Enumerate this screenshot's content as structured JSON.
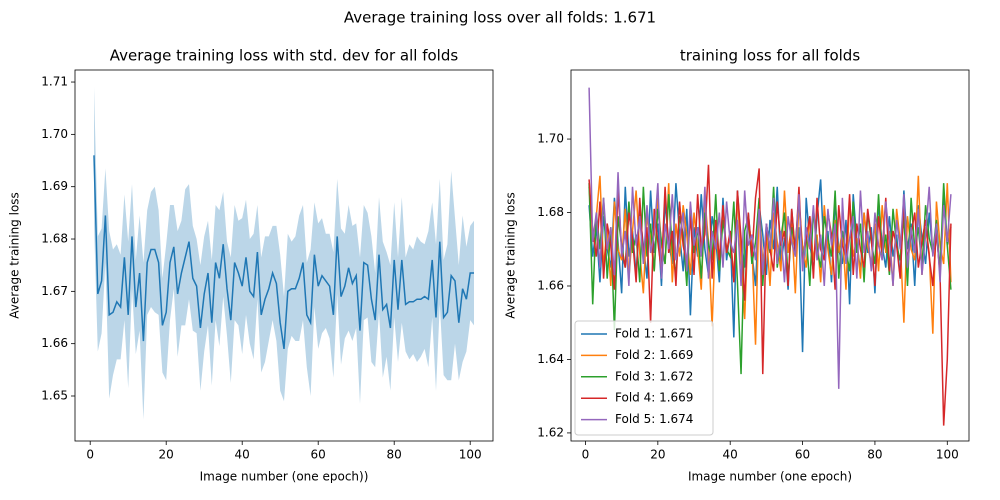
{
  "title": "Average training loss over all folds: 1.671",
  "chart_data": [
    {
      "type": "band-line",
      "title": "Average training loss with std. dev for all folds",
      "xlabel": "Image number (one epoch))",
      "ylabel": "Average training loss",
      "color": "#1f77b4",
      "band_color": "#1f77b4",
      "xlim": [
        -4,
        106
      ],
      "xticks": [
        0,
        20,
        40,
        60,
        80,
        100
      ],
      "ylim": [
        1.6414,
        1.7123
      ],
      "yticks": [
        1.65,
        1.66,
        1.67,
        1.68,
        1.69,
        {
          "value": 1.7,
          "label": "1.70"
        },
        1.71
      ],
      "x": [
        1,
        2,
        3,
        4,
        5,
        6,
        7,
        8,
        9,
        10,
        11,
        12,
        13,
        14,
        15,
        16,
        17,
        18,
        19,
        20,
        21,
        22,
        23,
        24,
        25,
        26,
        27,
        28,
        29,
        30,
        31,
        32,
        33,
        34,
        35,
        36,
        37,
        38,
        39,
        40,
        41,
        42,
        43,
        44,
        45,
        46,
        47,
        48,
        49,
        50,
        51,
        52,
        53,
        54,
        55,
        56,
        57,
        58,
        59,
        60,
        61,
        62,
        63,
        64,
        65,
        66,
        67,
        68,
        69,
        70,
        71,
        72,
        73,
        74,
        75,
        76,
        77,
        78,
        79,
        80,
        81,
        82,
        83,
        84,
        85,
        86,
        87,
        88,
        89,
        90,
        91,
        92,
        93,
        94,
        95,
        96,
        97,
        98,
        99,
        100,
        101
      ],
      "values": [
        1.696,
        1.6695,
        1.672,
        1.6845,
        1.6655,
        1.666,
        1.668,
        1.667,
        1.6765,
        1.6655,
        1.6805,
        1.667,
        1.6735,
        1.6605,
        1.6755,
        1.678,
        1.678,
        1.6755,
        1.6635,
        1.666,
        1.6755,
        1.6785,
        1.6695,
        1.6735,
        1.6765,
        1.6795,
        1.6725,
        1.671,
        1.663,
        1.6695,
        1.6735,
        1.664,
        1.6755,
        1.6725,
        1.679,
        1.6705,
        1.6645,
        1.6755,
        1.6735,
        1.671,
        1.6765,
        1.67,
        1.669,
        1.6775,
        1.6655,
        1.6685,
        1.6705,
        1.6735,
        1.6715,
        1.664,
        1.659,
        1.67,
        1.6705,
        1.6705,
        1.6725,
        1.6755,
        1.6655,
        1.664,
        1.677,
        1.671,
        1.673,
        1.672,
        1.671,
        1.6655,
        1.6805,
        1.669,
        1.671,
        1.6745,
        1.6715,
        1.673,
        1.6625,
        1.6755,
        1.675,
        1.6685,
        1.6645,
        1.677,
        1.6665,
        1.6675,
        1.663,
        1.676,
        1.6665,
        1.676,
        1.6675,
        1.668,
        1.668,
        1.6685,
        1.6685,
        1.669,
        1.6685,
        1.676,
        1.665,
        1.6795,
        1.665,
        1.666,
        1.673,
        1.672,
        1.664,
        1.6705,
        1.6685,
        1.6735,
        1.6735
      ],
      "std": [
        0.013,
        0.011,
        0.01,
        0.009,
        0.016,
        0.012,
        0.011,
        0.01,
        0.012,
        0.014,
        0.01,
        0.009,
        0.011,
        0.015,
        0.01,
        0.011,
        0.012,
        0.01,
        0.009,
        0.013,
        0.011,
        0.008,
        0.012,
        0.01,
        0.013,
        0.011,
        0.01,
        0.009,
        0.012,
        0.011,
        0.01,
        0.012,
        0.011,
        0.013,
        0.01,
        0.009,
        0.012,
        0.011,
        0.01,
        0.013,
        0.011,
        0.01,
        0.012,
        0.009,
        0.011,
        0.012,
        0.01,
        0.009,
        0.011,
        0.013,
        0.01,
        0.011,
        0.009,
        0.01,
        0.012,
        0.011,
        0.01,
        0.014,
        0.01,
        0.012,
        0.011,
        0.009,
        0.01,
        0.012,
        0.011,
        0.013,
        0.01,
        0.012,
        0.011,
        0.01,
        0.014,
        0.011,
        0.01,
        0.012,
        0.009,
        0.011,
        0.013,
        0.01,
        0.012,
        0.011,
        0.01,
        0.012,
        0.009,
        0.011,
        0.01,
        0.012,
        0.011,
        0.01,
        0.013,
        0.011,
        0.014,
        0.012,
        0.011,
        0.013,
        0.02,
        0.012,
        0.011,
        0.014,
        0.01,
        0.009,
        0.01
      ]
    },
    {
      "type": "line",
      "title": "training loss for all folds",
      "xlabel": "Image number (one epoch)",
      "ylabel": "Average training loss",
      "xlim": [
        -4,
        106
      ],
      "xticks": [
        0,
        20,
        40,
        60,
        80,
        100
      ],
      "ylim": [
        1.6178,
        1.7188
      ],
      "yticks": [
        1.62,
        1.64,
        1.66,
        1.68,
        {
          "value": 1.7,
          "label": "1.70"
        }
      ],
      "legend": "lower left",
      "x": [
        1,
        2,
        3,
        4,
        5,
        6,
        7,
        8,
        9,
        10,
        11,
        12,
        13,
        14,
        15,
        16,
        17,
        18,
        19,
        20,
        21,
        22,
        23,
        24,
        25,
        26,
        27,
        28,
        29,
        30,
        31,
        32,
        33,
        34,
        35,
        36,
        37,
        38,
        39,
        40,
        41,
        42,
        43,
        44,
        45,
        46,
        47,
        48,
        49,
        50,
        51,
        52,
        53,
        54,
        55,
        56,
        57,
        58,
        59,
        60,
        61,
        62,
        63,
        64,
        65,
        66,
        67,
        68,
        69,
        70,
        71,
        72,
        73,
        74,
        75,
        76,
        77,
        78,
        79,
        80,
        81,
        82,
        83,
        84,
        85,
        86,
        87,
        88,
        89,
        90,
        91,
        92,
        93,
        94,
        95,
        96,
        97,
        98,
        99,
        100,
        101
      ],
      "series": [
        {
          "name": "Fold 1: 1.671",
          "color": "#1f77b4",
          "values": [
            1.682,
            1.668,
            1.676,
            1.661,
            1.679,
            1.67,
            1.665,
            1.684,
            1.672,
            1.658,
            1.687,
            1.668,
            1.675,
            1.663,
            1.68,
            1.671,
            1.662,
            1.686,
            1.669,
            1.677,
            1.66,
            1.683,
            1.672,
            1.666,
            1.688,
            1.674,
            1.664,
            1.681,
            1.652,
            1.676,
            1.668,
            1.685,
            1.67,
            1.663,
            1.679,
            1.673,
            1.661,
            1.684,
            1.667,
            1.675,
            1.646,
            1.686,
            1.671,
            1.665,
            1.68,
            1.669,
            1.66,
            1.682,
            1.674,
            1.663,
            1.678,
            1.67,
            1.687,
            1.666,
            1.673,
            1.659,
            1.681,
            1.668,
            1.676,
            1.642,
            1.684,
            1.672,
            1.664,
            1.679,
            1.689,
            1.667,
            1.675,
            1.661,
            1.683,
            1.67,
            1.666,
            1.678,
            1.655,
            1.685,
            1.672,
            1.664,
            1.68,
            1.669,
            1.676,
            1.658,
            1.683,
            1.671,
            1.665,
            1.679,
            1.668,
            1.674,
            1.662,
            1.686,
            1.67,
            1.677,
            1.66,
            1.682,
            1.673,
            1.666,
            1.68,
            1.669,
            1.675,
            1.663,
            1.684,
            1.671,
            1.676
          ]
        },
        {
          "name": "Fold 2: 1.669",
          "color": "#ff7f0e",
          "values": [
            1.687,
            1.672,
            1.679,
            1.69,
            1.665,
            1.676,
            1.66,
            1.683,
            1.67,
            1.667,
            1.681,
            1.662,
            1.675,
            1.686,
            1.669,
            1.658,
            1.679,
            1.673,
            1.664,
            1.684,
            1.671,
            1.666,
            1.688,
            1.661,
            1.677,
            1.668,
            1.682,
            1.674,
            1.663,
            1.68,
            1.67,
            1.659,
            1.684,
            1.672,
            1.649,
            1.676,
            1.665,
            1.681,
            1.669,
            1.674,
            1.662,
            1.685,
            1.667,
            1.651,
            1.678,
            1.671,
            1.644,
            1.683,
            1.666,
            1.675,
            1.66,
            1.68,
            1.672,
            1.664,
            1.686,
            1.669,
            1.677,
            1.658,
            1.683,
            1.671,
            1.665,
            1.679,
            1.667,
            1.674,
            1.661,
            1.682,
            1.67,
            1.663,
            1.678,
            1.669,
            1.675,
            1.659,
            1.684,
            1.668,
            1.673,
            1.662,
            1.68,
            1.671,
            1.666,
            1.677,
            1.664,
            1.682,
            1.669,
            1.675,
            1.66,
            1.681,
            1.672,
            1.65,
            1.679,
            1.67,
            1.667,
            1.69,
            1.663,
            1.676,
            1.669,
            1.647,
            1.683,
            1.671,
            1.666,
            1.688,
            1.661
          ]
        },
        {
          "name": "Fold 3: 1.672",
          "color": "#2ca02c",
          "values": [
            1.688,
            1.655,
            1.68,
            1.67,
            1.684,
            1.662,
            1.676,
            1.648,
            1.679,
            1.671,
            1.665,
            1.683,
            1.669,
            1.674,
            1.661,
            1.687,
            1.668,
            1.677,
            1.664,
            1.681,
            1.672,
            1.666,
            1.685,
            1.67,
            1.663,
            1.679,
            1.674,
            1.66,
            1.682,
            1.669,
            1.676,
            1.662,
            1.68,
            1.671,
            1.667,
            1.685,
            1.664,
            1.678,
            1.67,
            1.668,
            1.683,
            1.661,
            1.636,
            1.675,
            1.679,
            1.666,
            1.672,
            1.684,
            1.66,
            1.677,
            1.669,
            1.687,
            1.665,
            1.673,
            1.68,
            1.662,
            1.676,
            1.671,
            1.684,
            1.667,
            1.674,
            1.66,
            1.681,
            1.67,
            1.665,
            1.679,
            1.673,
            1.668,
            1.686,
            1.662,
            1.675,
            1.67,
            1.664,
            1.683,
            1.669,
            1.677,
            1.661,
            1.68,
            1.672,
            1.666,
            1.685,
            1.668,
            1.674,
            1.663,
            1.681,
            1.671,
            1.667,
            1.679,
            1.66,
            1.684,
            1.67,
            1.676,
            1.665,
            1.682,
            1.673,
            1.669,
            1.678,
            1.664,
            1.688,
            1.671,
            1.659
          ]
        },
        {
          "name": "Fold 4: 1.669",
          "color": "#d62728",
          "values": [
            1.689,
            1.675,
            1.668,
            1.683,
            1.662,
            1.677,
            1.671,
            1.659,
            1.686,
            1.67,
            1.665,
            1.68,
            1.673,
            1.661,
            1.684,
            1.668,
            1.676,
            1.65,
            1.681,
            1.672,
            1.664,
            1.687,
            1.669,
            1.675,
            1.66,
            1.683,
            1.671,
            1.666,
            1.679,
            1.663,
            1.685,
            1.67,
            1.674,
            1.693,
            1.662,
            1.678,
            1.667,
            1.682,
            1.669,
            1.675,
            1.661,
            1.686,
            1.673,
            1.656,
            1.68,
            1.668,
            1.684,
            1.692,
            1.636,
            1.677,
            1.67,
            1.664,
            1.683,
            1.671,
            1.675,
            1.66,
            1.681,
            1.669,
            1.687,
            1.666,
            1.673,
            1.679,
            1.662,
            1.684,
            1.67,
            1.667,
            1.68,
            1.674,
            1.659,
            1.682,
            1.671,
            1.668,
            1.685,
            1.663,
            1.677,
            1.67,
            1.665,
            1.681,
            1.673,
            1.66,
            1.679,
            1.669,
            1.684,
            1.664,
            1.675,
            1.671,
            1.662,
            1.683,
            1.667,
            1.674,
            1.68,
            1.665,
            1.672,
            1.678,
            1.668,
            1.66,
            1.675,
            1.663,
            1.622,
            1.64,
            1.677
          ]
        },
        {
          "name": "Fold 5: 1.674",
          "color": "#9467bd",
          "values": [
            1.714,
            1.672,
            1.68,
            1.665,
            1.684,
            1.67,
            1.676,
            1.663,
            1.691,
            1.668,
            1.675,
            1.66,
            1.687,
            1.671,
            1.679,
            1.666,
            1.682,
            1.669,
            1.674,
            1.688,
            1.662,
            1.677,
            1.67,
            1.685,
            1.667,
            1.673,
            1.68,
            1.664,
            1.683,
            1.671,
            1.676,
            1.668,
            1.687,
            1.662,
            1.675,
            1.67,
            1.68,
            1.665,
            1.683,
            1.672,
            1.669,
            1.678,
            1.66,
            1.686,
            1.671,
            1.674,
            1.667,
            1.681,
            1.663,
            1.677,
            1.67,
            1.684,
            1.666,
            1.675,
            1.661,
            1.679,
            1.672,
            1.668,
            1.685,
            1.664,
            1.676,
            1.67,
            1.682,
            1.667,
            1.674,
            1.66,
            1.681,
            1.671,
            1.677,
            1.632,
            1.684,
            1.666,
            1.673,
            1.679,
            1.662,
            1.686,
            1.669,
            1.675,
            1.664,
            1.68,
            1.671,
            1.667,
            1.683,
            1.673,
            1.66,
            1.678,
            1.67,
            1.685,
            1.665,
            1.676,
            1.669,
            1.681,
            1.663,
            1.674,
            1.687,
            1.668,
            1.677,
            1.661,
            1.682,
            1.672,
            1.685
          ]
        }
      ]
    }
  ]
}
